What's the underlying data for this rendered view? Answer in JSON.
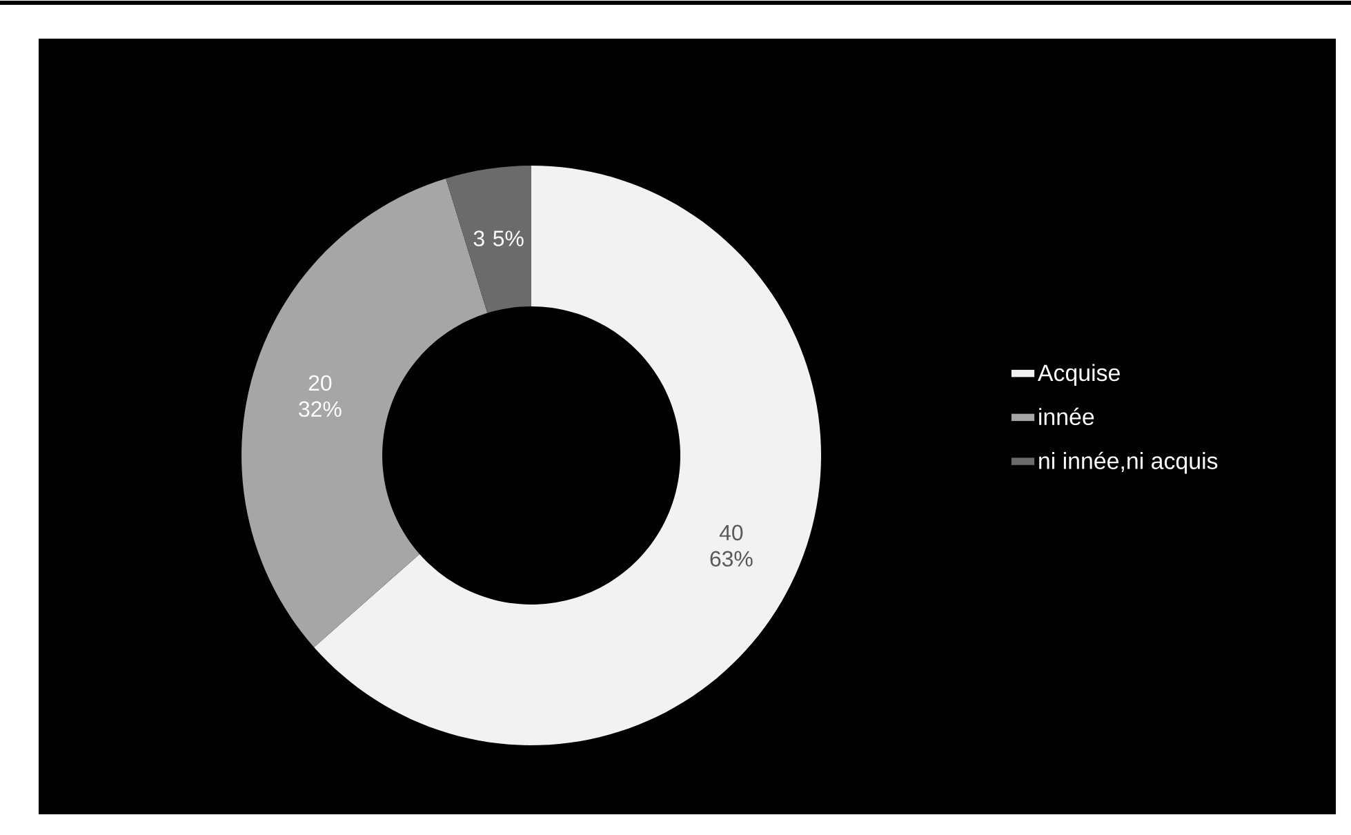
{
  "chart_data": {
    "type": "donut",
    "categories": [
      "Acquise",
      "innée",
      "ni innée,ni acquis"
    ],
    "values": [
      40,
      20,
      3
    ],
    "colors": [
      "#f2f2f2",
      "#a6a6a6",
      "#6b6b6b"
    ],
    "value_labels": [
      "40 63%",
      "20 32%",
      "3 5%"
    ],
    "legend": "right"
  }
}
